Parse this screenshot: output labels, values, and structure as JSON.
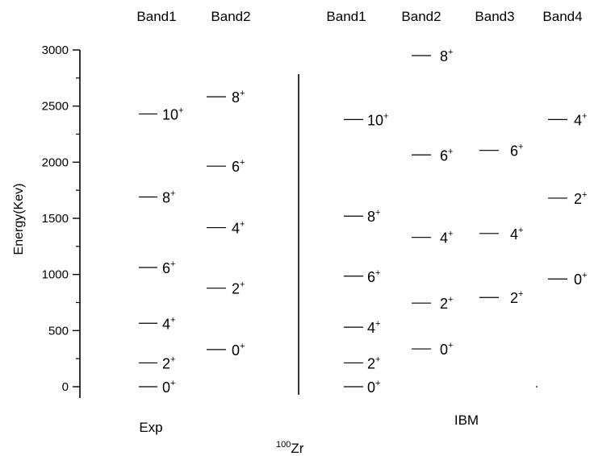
{
  "chart_data": {
    "type": "level-scheme",
    "ylabel": "Energy(Kev)",
    "ylim": [
      0,
      3000
    ],
    "yticks": [
      0,
      500,
      1000,
      1500,
      2000,
      2500,
      3000
    ],
    "nucleus": {
      "mass": "100",
      "symbol": "Zr"
    },
    "panels": [
      {
        "name": "Exp",
        "bands": [
          {
            "name": "Band1",
            "levels": [
              {
                "label": "0",
                "parity": "+",
                "energy": 0
              },
              {
                "label": "2",
                "parity": "+",
                "energy": 212
              },
              {
                "label": "4",
                "parity": "+",
                "energy": 565
              },
              {
                "label": "6",
                "parity": "+",
                "energy": 1062
              },
              {
                "label": "8",
                "parity": "+",
                "energy": 1690
              },
              {
                "label": "10",
                "parity": "+",
                "energy": 2430
              }
            ]
          },
          {
            "name": "Band2",
            "levels": [
              {
                "label": "0",
                "parity": "+",
                "energy": 331
              },
              {
                "label": "2",
                "parity": "+",
                "energy": 878
              },
              {
                "label": "4",
                "parity": "+",
                "energy": 1417
              },
              {
                "label": "6",
                "parity": "+",
                "energy": 1965
              },
              {
                "label": "8",
                "parity": "+",
                "energy": 2583
              }
            ]
          }
        ]
      },
      {
        "name": "IBM",
        "bands": [
          {
            "name": "Band1",
            "levels": [
              {
                "label": "0",
                "parity": "+",
                "energy": 0
              },
              {
                "label": "2",
                "parity": "+",
                "energy": 212
              },
              {
                "label": "4",
                "parity": "+",
                "energy": 530
              },
              {
                "label": "6",
                "parity": "+",
                "energy": 985
              },
              {
                "label": "8",
                "parity": "+",
                "energy": 1520
              },
              {
                "label": "10",
                "parity": "+",
                "energy": 2380
              }
            ]
          },
          {
            "name": "Band2",
            "levels": [
              {
                "label": "0",
                "parity": "+",
                "energy": 337
              },
              {
                "label": "2",
                "parity": "+",
                "energy": 745
              },
              {
                "label": "4",
                "parity": "+",
                "energy": 1330
              },
              {
                "label": "6",
                "parity": "+",
                "energy": 2065
              },
              {
                "label": "8",
                "parity": "+",
                "energy": 2950
              }
            ]
          },
          {
            "name": "Band3",
            "levels": [
              {
                "label": "2",
                "parity": "+",
                "energy": 795
              },
              {
                "label": "4",
                "parity": "+",
                "energy": 1365
              },
              {
                "label": "6",
                "parity": "+",
                "energy": 2105
              }
            ]
          },
          {
            "name": "Band4",
            "levels": [
              {
                "label": "0",
                "parity": "+",
                "energy": 960
              },
              {
                "label": "2",
                "parity": "+",
                "energy": 1680
              },
              {
                "label": "4",
                "parity": "+",
                "energy": 2380
              }
            ]
          }
        ]
      }
    ]
  }
}
